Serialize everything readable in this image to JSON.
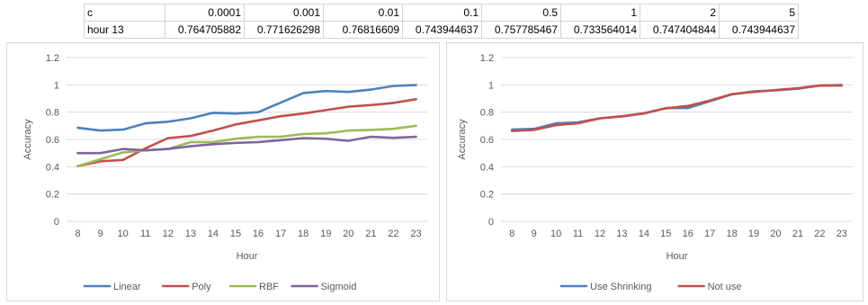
{
  "table": {
    "rows": [
      [
        "c",
        "0.0001",
        "0.001",
        "0.01",
        "0.1",
        "0.5",
        "1",
        "2",
        "5"
      ],
      [
        "hour 13",
        "0.764705882",
        "0.771626298",
        "0.76816609",
        "0.743944637",
        "0.757785467",
        "0.733564014",
        "0.747404844",
        "0.743944637"
      ]
    ]
  },
  "chart_data": [
    {
      "type": "line",
      "title": "",
      "xlabel": "Hour",
      "ylabel": "Accuracy",
      "ylim": [
        0,
        1.2
      ],
      "yticks": [
        "0",
        "0.2",
        "0.4",
        "0.6",
        "0.8",
        "1",
        "1.2"
      ],
      "categories": [
        "8",
        "9",
        "10",
        "11",
        "12",
        "13",
        "14",
        "15",
        "16",
        "17",
        "18",
        "19",
        "20",
        "21",
        "22",
        "23"
      ],
      "grid": true,
      "legend": "bottom",
      "series": [
        {
          "name": "Linear",
          "color": "#4f81bd",
          "values": [
            0.685,
            0.665,
            0.672,
            0.718,
            0.73,
            0.755,
            0.795,
            0.79,
            0.8,
            0.87,
            0.94,
            0.955,
            0.948,
            0.965,
            0.992,
            0.998
          ]
        },
        {
          "name": "Poly",
          "color": "#c0504d",
          "values": [
            0.405,
            0.44,
            0.45,
            0.535,
            0.61,
            0.625,
            0.665,
            0.71,
            0.74,
            0.77,
            0.79,
            0.815,
            0.84,
            0.852,
            0.868,
            0.895
          ]
        },
        {
          "name": "RBF",
          "color": "#9bbb59",
          "values": [
            0.405,
            0.455,
            0.505,
            0.52,
            0.53,
            0.58,
            0.58,
            0.605,
            0.62,
            0.62,
            0.64,
            0.645,
            0.665,
            0.67,
            0.678,
            0.7
          ]
        },
        {
          "name": "Sigmoid",
          "color": "#8064a2",
          "values": [
            0.5,
            0.5,
            0.53,
            0.52,
            0.53,
            0.55,
            0.565,
            0.575,
            0.58,
            0.595,
            0.61,
            0.605,
            0.59,
            0.62,
            0.612,
            0.62
          ]
        }
      ]
    },
    {
      "type": "line",
      "title": "",
      "xlabel": "Hour",
      "ylabel": "Accuracy",
      "ylim": [
        0,
        1.2
      ],
      "yticks": [
        "0",
        "0.2",
        "0.4",
        "0.6",
        "0.8",
        "1",
        "1.2"
      ],
      "categories": [
        "8",
        "9",
        "10",
        "11",
        "12",
        "13",
        "14",
        "15",
        "16",
        "17",
        "18",
        "19",
        "20",
        "21",
        "22",
        "23"
      ],
      "grid": true,
      "legend": "bottom",
      "series": [
        {
          "name": "Use Shrinking",
          "color": "#4f81bd",
          "values": [
            0.672,
            0.678,
            0.718,
            0.725,
            0.755,
            0.768,
            0.79,
            0.83,
            0.83,
            0.88,
            0.93,
            0.952,
            0.96,
            0.972,
            0.995,
            0.998
          ]
        },
        {
          "name": "Not use",
          "color": "#c0504d",
          "values": [
            0.662,
            0.67,
            0.705,
            0.718,
            0.755,
            0.77,
            0.792,
            0.828,
            0.845,
            0.885,
            0.932,
            0.948,
            0.962,
            0.975,
            0.995,
            0.995
          ]
        }
      ]
    }
  ]
}
